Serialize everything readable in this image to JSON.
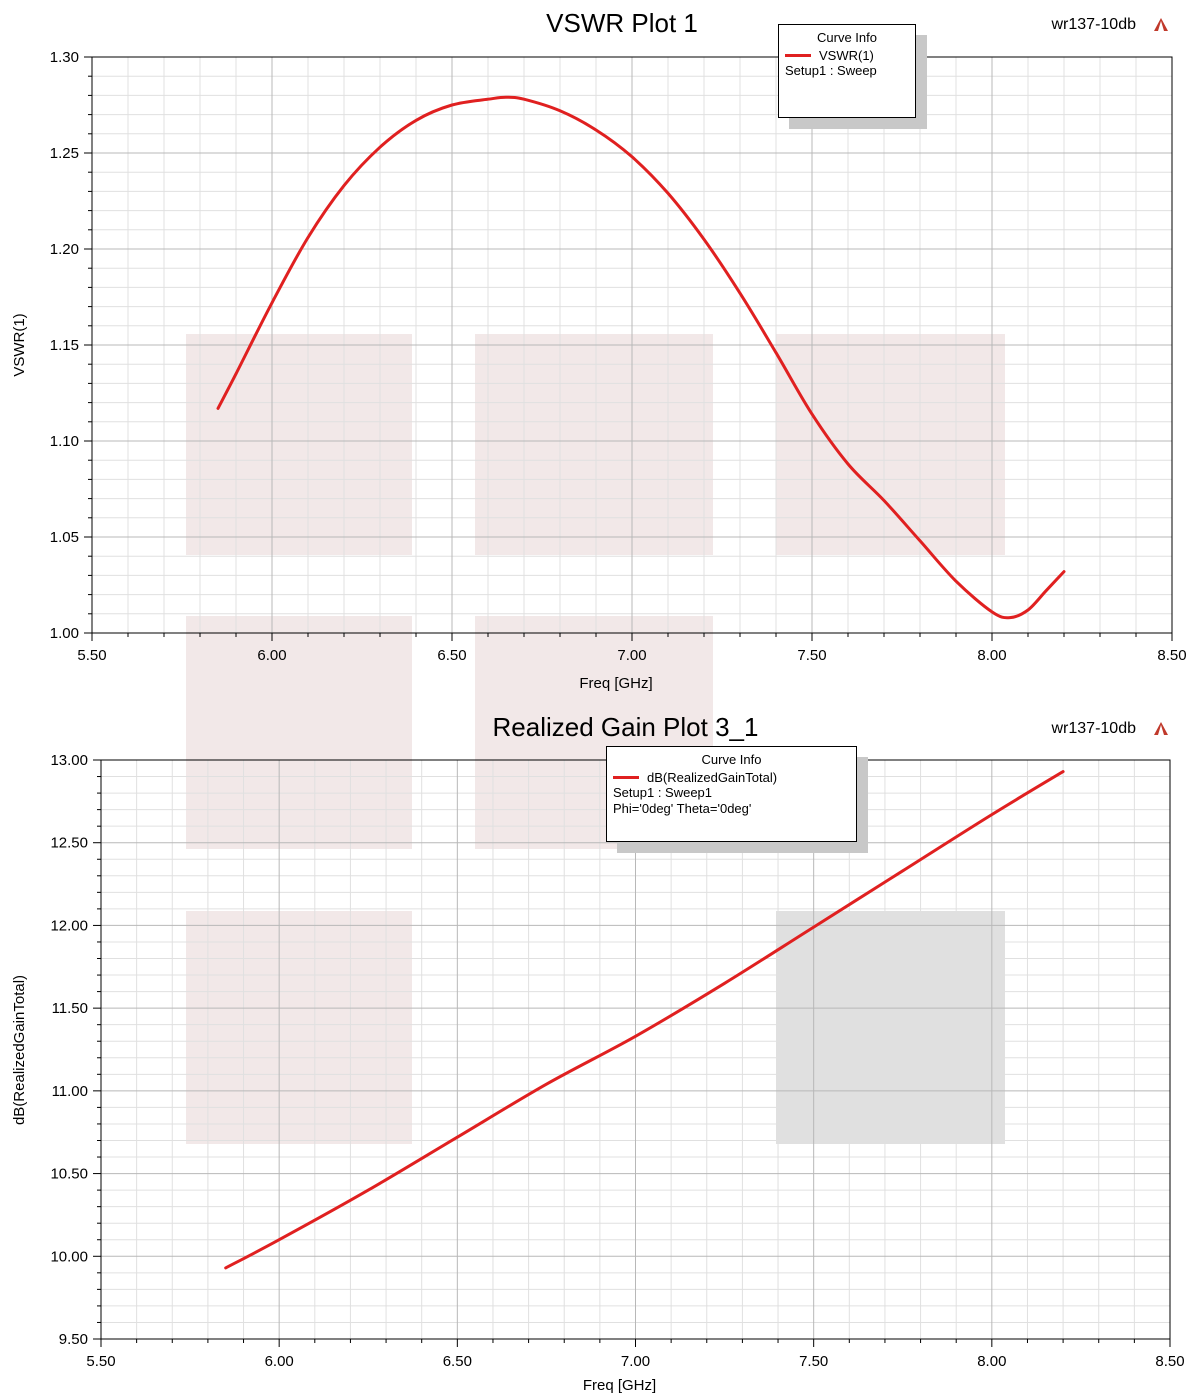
{
  "colors": {
    "curve": "#e02020",
    "grid_major": "#b8b8b8",
    "grid_minor": "#e0e0e0",
    "watermark_light": "#f0e4e4",
    "watermark_dark": "#dadada",
    "logo": "#c0392b"
  },
  "chart_data": [
    {
      "type": "line",
      "title": "VSWR Plot 1",
      "project": "wr137-10db",
      "xlabel": "Freq [GHz]",
      "ylabel": "VSWR(1)",
      "xlim": [
        5.5,
        8.5
      ],
      "ylim": [
        1.0,
        1.3
      ],
      "xticks": [
        "5.50",
        "6.00",
        "6.50",
        "7.00",
        "7.50",
        "8.00",
        "8.50"
      ],
      "yticks": [
        "1.00",
        "1.05",
        "1.10",
        "1.15",
        "1.20",
        "1.25",
        "1.30"
      ],
      "grid": true,
      "legend": {
        "title": "Curve Info",
        "entry": "VSWR(1)",
        "lines": [
          "Setup1 : Sweep"
        ],
        "placement": "top-center"
      },
      "series": [
        {
          "name": "VSWR(1)",
          "x": [
            5.85,
            5.9,
            6.0,
            6.1,
            6.2,
            6.3,
            6.4,
            6.5,
            6.6,
            6.65,
            6.7,
            6.8,
            6.9,
            7.0,
            7.1,
            7.2,
            7.3,
            7.4,
            7.5,
            7.6,
            7.7,
            7.8,
            7.9,
            8.0,
            8.05,
            8.1,
            8.15,
            8.2
          ],
          "y": [
            1.117,
            1.135,
            1.172,
            1.206,
            1.233,
            1.253,
            1.267,
            1.275,
            1.278,
            1.279,
            1.278,
            1.272,
            1.262,
            1.248,
            1.229,
            1.205,
            1.177,
            1.146,
            1.114,
            1.088,
            1.069,
            1.048,
            1.027,
            1.011,
            1.008,
            1.012,
            1.022,
            1.032
          ]
        }
      ]
    },
    {
      "type": "line",
      "title": "Realized Gain Plot 3_1",
      "project": "wr137-10db",
      "xlabel": "Freq [GHz]",
      "ylabel": "dB(RealizedGainTotal)",
      "xlim": [
        5.5,
        8.5
      ],
      "ylim": [
        9.5,
        13.0
      ],
      "xticks": [
        "5.50",
        "6.00",
        "6.50",
        "7.00",
        "7.50",
        "8.00",
        "8.50"
      ],
      "yticks": [
        "9.50",
        "10.00",
        "10.50",
        "11.00",
        "11.50",
        "12.00",
        "12.50",
        "13.00"
      ],
      "grid": true,
      "legend": {
        "title": "Curve Info",
        "entry": "dB(RealizedGainTotal)",
        "lines": [
          "Setup1 : Sweep1",
          "Phi='0deg' Theta='0deg'"
        ],
        "placement": "top-center"
      },
      "series": [
        {
          "name": "dB(RealizedGainTotal)",
          "x": [
            5.85,
            6.0,
            6.25,
            6.5,
            6.75,
            7.0,
            7.25,
            7.5,
            7.75,
            8.0,
            8.2
          ],
          "y": [
            9.93,
            10.1,
            10.4,
            10.72,
            11.04,
            11.33,
            11.65,
            11.99,
            12.33,
            12.67,
            12.93
          ]
        }
      ]
    }
  ]
}
